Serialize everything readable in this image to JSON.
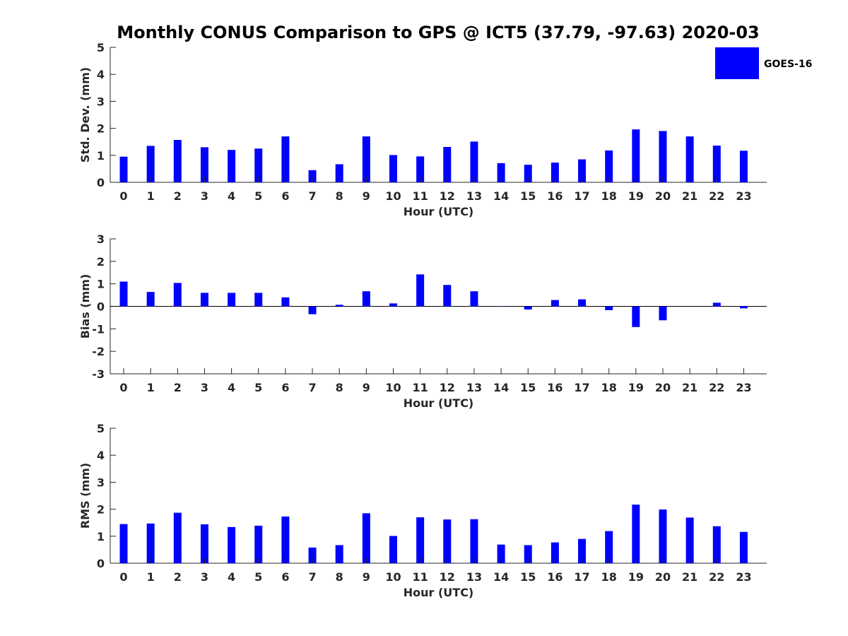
{
  "chart_data": {
    "title": "Monthly CONUS Comparison to GPS @ ICT5 (37.79, -97.63) 2020-03",
    "legend": {
      "label": "GOES-16",
      "color": "#0000ff",
      "placement": "top-right"
    },
    "color": "#0000ff",
    "subplots": [
      {
        "type": "bar",
        "ylabel": "Std. Dev. (mm)",
        "xlabel": "Hour (UTC)",
        "ylim": [
          0,
          5
        ],
        "yticks": [
          0,
          1,
          2,
          3,
          4,
          5
        ],
        "categories": [
          "0",
          "1",
          "2",
          "3",
          "4",
          "5",
          "6",
          "7",
          "8",
          "9",
          "10",
          "11",
          "12",
          "13",
          "14",
          "15",
          "16",
          "17",
          "18",
          "19",
          "20",
          "21",
          "22",
          "23"
        ],
        "values": [
          0.95,
          1.35,
          1.57,
          1.3,
          1.2,
          1.25,
          1.7,
          0.45,
          0.67,
          1.7,
          1.01,
          0.96,
          1.31,
          1.51,
          0.71,
          0.65,
          0.73,
          0.85,
          1.18,
          1.96,
          1.9,
          1.7,
          1.36,
          1.17
        ]
      },
      {
        "type": "bar",
        "ylabel": "Bias (mm)",
        "xlabel": "Hour (UTC)",
        "ylim": [
          -3,
          3
        ],
        "yticks": [
          -3,
          -2,
          -1,
          0,
          1,
          2,
          3
        ],
        "categories": [
          "0",
          "1",
          "2",
          "3",
          "4",
          "5",
          "6",
          "7",
          "8",
          "9",
          "10",
          "11",
          "12",
          "13",
          "14",
          "15",
          "16",
          "17",
          "18",
          "19",
          "20",
          "21",
          "22",
          "23"
        ],
        "values": [
          1.1,
          0.64,
          1.04,
          0.6,
          0.6,
          0.6,
          0.4,
          -0.35,
          0.07,
          0.67,
          0.13,
          1.42,
          0.95,
          0.67,
          0.01,
          -0.14,
          0.28,
          0.31,
          -0.17,
          -0.92,
          -0.62,
          0.0,
          0.16,
          -0.09
        ]
      },
      {
        "type": "bar",
        "ylabel": "RMS (mm)",
        "xlabel": "Hour (UTC)",
        "ylim": [
          0,
          5
        ],
        "yticks": [
          0,
          1,
          2,
          3,
          4,
          5
        ],
        "categories": [
          "0",
          "1",
          "2",
          "3",
          "4",
          "5",
          "6",
          "7",
          "8",
          "9",
          "10",
          "11",
          "12",
          "13",
          "14",
          "15",
          "16",
          "17",
          "18",
          "19",
          "20",
          "21",
          "22",
          "23"
        ],
        "values": [
          1.45,
          1.47,
          1.87,
          1.44,
          1.34,
          1.39,
          1.73,
          0.58,
          0.67,
          1.85,
          1.01,
          1.7,
          1.62,
          1.63,
          0.69,
          0.67,
          0.77,
          0.9,
          1.19,
          2.17,
          1.99,
          1.69,
          1.37,
          1.16
        ]
      }
    ]
  }
}
